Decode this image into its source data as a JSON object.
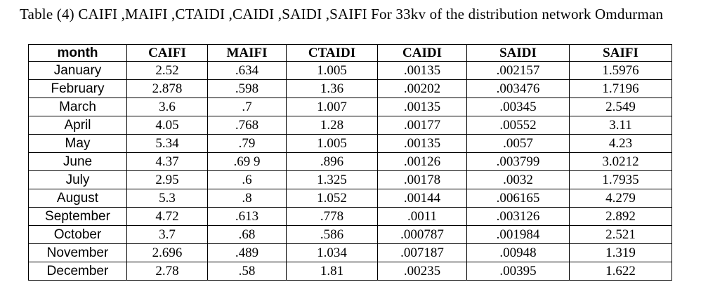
{
  "page": {
    "title": "Table (4) CAIFI ,MAIFI ,CTAIDI ,CAIDI ,SAIDI ,SAIFI For 33kv of the distribution network Omdurman",
    "background_color": "#ffffff",
    "text_color": "#000000",
    "table_border_color": "#000000"
  },
  "table": {
    "headers": [
      "month",
      "CAIFI",
      "MAIFI",
      "CTAIDI",
      "CAIDI",
      "SAIDI",
      "SAIFI"
    ],
    "rows": [
      [
        "January",
        "2.52",
        ".634",
        "1.005",
        ".00135",
        ".002157",
        "1.5976"
      ],
      [
        "February",
        "2.878",
        ".598",
        "1.36",
        ".00202",
        ".003476",
        "1.7196"
      ],
      [
        "March",
        "3.6",
        ".7",
        "1.007",
        ".00135",
        ".00345",
        "2.549"
      ],
      [
        "April",
        "4.05",
        ".768",
        "1.28",
        ".00177",
        ".00552",
        "3.11"
      ],
      [
        "May",
        "5.34",
        ".79",
        "1.005",
        ".00135",
        ".0057",
        "4.23"
      ],
      [
        "June",
        "4.37",
        ".69 9",
        ".896",
        ".00126",
        ".003799",
        "3.0212"
      ],
      [
        "July",
        "2.95",
        ".6",
        "1.325",
        ".00178",
        ".0032",
        "1.7935"
      ],
      [
        "August",
        "5.3",
        ".8",
        "1.052",
        ".00144",
        ".006165",
        "4.279"
      ],
      [
        "September",
        "4.72",
        ".613",
        ".778",
        ".0011",
        ".003126",
        "2.892"
      ],
      [
        "October",
        "3.7",
        ".68",
        ".586",
        ".000787",
        ".001984",
        "2.521"
      ],
      [
        "November",
        "2.696",
        ".489",
        "1.034",
        ".007187",
        ".00948",
        "1.319"
      ],
      [
        "December",
        "2.78",
        ".58",
        "1.81",
        ".00235",
        ".00395",
        "1.622"
      ]
    ]
  }
}
